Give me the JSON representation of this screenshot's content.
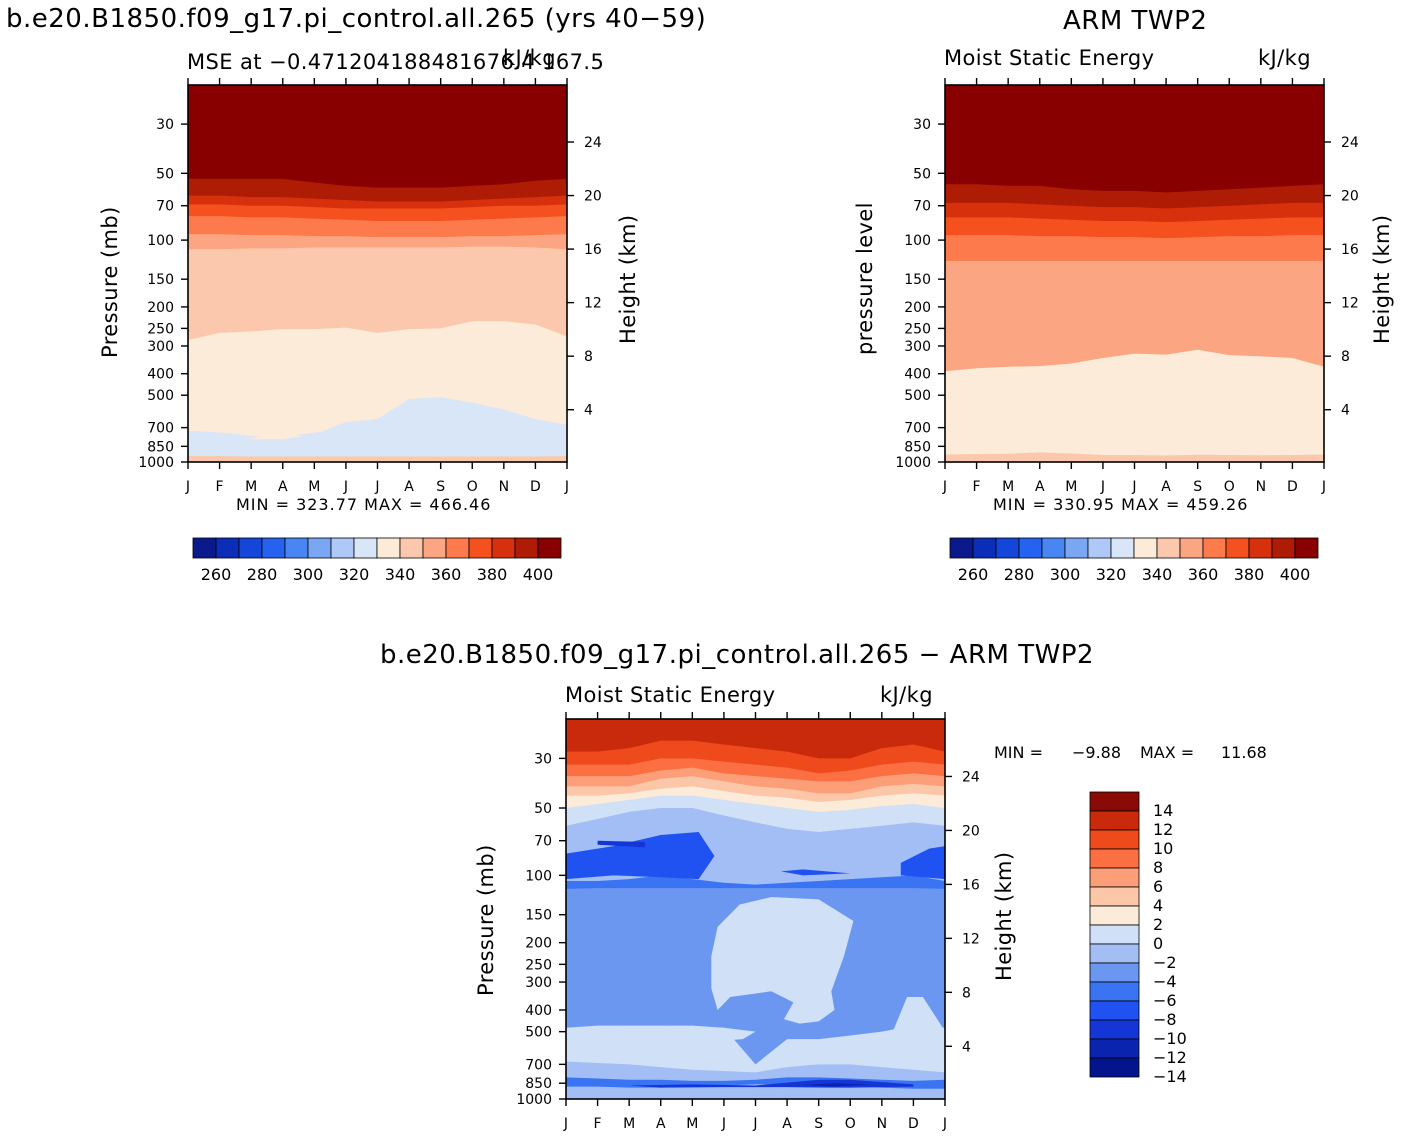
{
  "figure": {
    "panel_a_title": "b.e20.B1850.f09_g17.pi_control.all.265 (yrs 40−59)",
    "panel_b_title": "ARM TWP2",
    "panel_c_title": "b.e20.B1850.f09_g17.pi_control.all.265 − ARM TWP2"
  },
  "months": [
    "J",
    "F",
    "M",
    "A",
    "M",
    "J",
    "J",
    "A",
    "S",
    "O",
    "N",
    "D",
    "J"
  ],
  "colors": {
    "mse_palette": [
      "#0a1a8c",
      "#0b2db8",
      "#1446d9",
      "#2462ef",
      "#4a86f3",
      "#7ba6f4",
      "#aec8f7",
      "#d8e6f8",
      "#fdebd9",
      "#fcc8ad",
      "#fca582",
      "#fd7a4d",
      "#f4511e",
      "#d7300d",
      "#ae1c06",
      "#880000"
    ],
    "diff_palette": [
      "#04148c",
      "#0b24b0",
      "#1436d6",
      "#1f52f0",
      "#3a74f2",
      "#6c97f1",
      "#a2bef5",
      "#cfe0f7",
      "#fdebd9",
      "#fcc6a9",
      "#fc9e78",
      "#fb6f42",
      "#ee4a1b",
      "#c82a0b",
      "#8a0b05"
    ]
  },
  "panels": {
    "a": {
      "left_title": "MSE at −0.471204188481676.4  167.5",
      "units": "kJ/kg",
      "ylabel": "Pressure (mb)",
      "y2label": "Height (km)",
      "minmax": "MIN = 323.77  MAX = 466.46"
    },
    "b": {
      "left_title": "Moist Static Energy",
      "units": "kJ/kg",
      "ylabel": "pressure level",
      "y2label": "Height (km)",
      "minmax": "MIN = 330.95  MAX = 459.26"
    },
    "c": {
      "left_title": "Moist Static Energy",
      "units": "kJ/kg",
      "ylabel": "Pressure (mb)",
      "y2label": "Height (km)",
      "min_label": "MIN =",
      "min_value": "−9.88",
      "max_label": "MAX =",
      "max_value": "11.68"
    }
  },
  "chart_data": [
    {
      "type": "heatmap",
      "title": "b.e20.B1850.f09_g17.pi_control.all.265 (yrs 40−59)",
      "variable": "MSE at −0.471204188481676.4  167.5",
      "units": "kJ/kg",
      "x_categories": [
        "J",
        "F",
        "M",
        "A",
        "M",
        "J",
        "J",
        "A",
        "S",
        "O",
        "N",
        "D",
        "J"
      ],
      "ylabel": "Pressure (mb)",
      "y2label": "Height (km)",
      "y_ticks": [
        30,
        50,
        70,
        100,
        150,
        200,
        250,
        300,
        400,
        500,
        700,
        850,
        1000
      ],
      "y2_ticks": [
        4,
        8,
        12,
        16,
        20,
        24
      ],
      "ylim": [
        1000,
        20
      ],
      "log_y": true,
      "min": 323.77,
      "max": 466.46,
      "colorbar_ticks": [
        260,
        280,
        300,
        320,
        340,
        360,
        380,
        400
      ],
      "contour_boundaries_mb": [
        {
          "level": 400,
          "values": [
            53,
            53,
            53,
            53,
            55,
            57,
            58,
            58,
            58,
            57,
            56,
            54,
            53
          ]
        },
        {
          "level": 380,
          "values": [
            63,
            63,
            64,
            64,
            65,
            66,
            67,
            67,
            67,
            66,
            65,
            64,
            63
          ]
        },
        {
          "level": 370,
          "values": [
            69,
            69,
            70,
            70,
            71,
            72,
            72,
            72,
            72,
            71,
            70,
            70,
            69
          ]
        },
        {
          "level": 360,
          "values": [
            78,
            78,
            79,
            79,
            80,
            81,
            82,
            82,
            82,
            81,
            80,
            79,
            78
          ]
        },
        {
          "level": 350,
          "values": [
            94,
            94,
            95,
            95,
            96,
            96,
            97,
            97,
            97,
            96,
            96,
            95,
            94
          ]
        },
        {
          "level": 340,
          "values": [
            110,
            110,
            109,
            109,
            108,
            108,
            108,
            108,
            108,
            107,
            107,
            108,
            110
          ]
        },
        {
          "level": 330,
          "values": [
            282,
            262,
            258,
            252,
            252,
            248,
            262,
            252,
            250,
            232,
            232,
            240,
            272
          ]
        },
        {
          "level": 320,
          "values": [
            780,
            780,
            790,
            790,
            750,
            660,
            640,
            520,
            510,
            540,
            580,
            640,
            680
          ]
        },
        {
          "level": 330.5,
          "values": [
            940,
            940,
            945,
            945,
            945,
            945,
            945,
            945,
            945,
            945,
            945,
            945,
            940
          ]
        }
      ]
    },
    {
      "type": "heatmap",
      "title": "ARM TWP2",
      "variable": "Moist Static Energy",
      "units": "kJ/kg",
      "x_categories": [
        "J",
        "F",
        "M",
        "A",
        "M",
        "J",
        "J",
        "A",
        "S",
        "O",
        "N",
        "D",
        "J"
      ],
      "ylabel": "pressure level",
      "y2label": "Height (km)",
      "y_ticks": [
        30,
        50,
        70,
        100,
        150,
        200,
        250,
        300,
        400,
        500,
        700,
        850,
        1000
      ],
      "y2_ticks": [
        4,
        8,
        12,
        16,
        20,
        24
      ],
      "ylim": [
        1000,
        20
      ],
      "log_y": true,
      "min": 330.95,
      "max": 459.26,
      "colorbar_ticks": [
        260,
        280,
        300,
        320,
        340,
        360,
        380,
        400
      ],
      "contour_boundaries_mb": [
        {
          "level": 400,
          "values": [
            56,
            56,
            57,
            57,
            59,
            60,
            60,
            61,
            60,
            59,
            58,
            57,
            56
          ]
        },
        {
          "level": 380,
          "values": [
            68,
            68,
            68,
            69,
            70,
            71,
            71,
            72,
            71,
            70,
            69,
            68,
            68
          ]
        },
        {
          "level": 370,
          "values": [
            79,
            79,
            79,
            80,
            81,
            82,
            82,
            83,
            82,
            81,
            80,
            79,
            79
          ]
        },
        {
          "level": 360,
          "values": [
            95,
            95,
            95,
            96,
            96,
            97,
            97,
            98,
            97,
            96,
            96,
            95,
            95
          ]
        },
        {
          "level": 350,
          "values": [
            124,
            124,
            124,
            124,
            124,
            124,
            124,
            124,
            124,
            124,
            124,
            124,
            124
          ]
        },
        {
          "level": 340,
          "values": [
            390,
            378,
            372,
            370,
            360,
            340,
            325,
            328,
            312,
            330,
            334,
            340,
            372
          ]
        },
        {
          "level": 330,
          "values": [
            925,
            920,
            918,
            905,
            915,
            930,
            930,
            935,
            928,
            930,
            932,
            930,
            925
          ]
        }
      ]
    },
    {
      "type": "heatmap",
      "title": "b.e20.B1850.f09_g17.pi_control.all.265 − ARM TWP2",
      "variable": "Moist Static Energy",
      "units": "kJ/kg",
      "x_categories": [
        "J",
        "F",
        "M",
        "A",
        "M",
        "J",
        "J",
        "A",
        "S",
        "O",
        "N",
        "D",
        "J"
      ],
      "ylabel": "Pressure (mb)",
      "y2label": "Height (km)",
      "y_ticks": [
        30,
        50,
        70,
        100,
        150,
        200,
        250,
        300,
        400,
        500,
        700,
        850,
        1000
      ],
      "y2_ticks": [
        4,
        8,
        12,
        16,
        20,
        24
      ],
      "ylim": [
        1000,
        20
      ],
      "log_y": true,
      "min": -9.88,
      "max": 11.68,
      "colorbar_ticks": [
        14,
        12,
        10,
        8,
        6,
        4,
        2,
        0,
        -2,
        -4,
        -6,
        -8,
        -10,
        -12,
        -14
      ],
      "contour_boundaries_mb": [
        {
          "level": 8,
          "values": [
            28,
            28,
            27,
            25,
            25,
            26,
            27,
            28,
            30,
            30,
            27,
            26,
            28
          ]
        },
        {
          "level": 6,
          "values": [
            32,
            32,
            32,
            30,
            30,
            31,
            32,
            33,
            35,
            34,
            32,
            31,
            32
          ]
        },
        {
          "level": 4,
          "values": [
            36,
            36,
            36,
            34,
            33,
            35,
            36,
            37,
            38,
            38,
            36,
            35,
            36
          ]
        },
        {
          "level": 2,
          "values": [
            40,
            40,
            40,
            37,
            36,
            38,
            40,
            41,
            43,
            43,
            40,
            39,
            40
          ]
        },
        {
          "level": 0,
          "values": [
            44,
            44,
            43,
            41,
            40,
            42,
            44,
            45,
            47,
            46,
            44,
            43,
            44
          ]
        },
        {
          "level": -2,
          "values": [
            50,
            48,
            46,
            44,
            44,
            46,
            48,
            50,
            52,
            51,
            49,
            48,
            50
          ]
        },
        {
          "level": -4,
          "values": [
            60,
            56,
            52,
            50,
            50,
            54,
            58,
            62,
            64,
            62,
            60,
            58,
            60
          ]
        },
        {
          "level": -6,
          "values": [
            106,
            106,
            104,
            100,
            104,
            108,
            110,
            108,
            106,
            104,
            102,
            100,
            106
          ]
        },
        {
          "level": -4,
          "values": [
            115,
            114,
            114,
            114,
            114,
            114,
            114,
            114,
            114,
            114,
            114,
            114,
            115
          ]
        },
        {
          "level": -2,
          "values": [
            480,
            470,
            470,
            470,
            470,
            480,
            700,
            540,
            540,
            520,
            500,
            470,
            480
          ]
        },
        {
          "level": -4,
          "values": [
            680,
            690,
            700,
            720,
            740,
            750,
            760,
            720,
            700,
            700,
            720,
            740,
            760
          ]
        },
        {
          "level": -6,
          "values": [
            800,
            810,
            820,
            820,
            830,
            830,
            820,
            800,
            800,
            810,
            820,
            830,
            820
          ]
        },
        {
          "level": -8,
          "values": [
            880,
            880,
            890,
            890,
            880,
            870,
            860,
            860,
            870,
            880,
            890,
            900,
            900
          ]
        }
      ]
    }
  ]
}
